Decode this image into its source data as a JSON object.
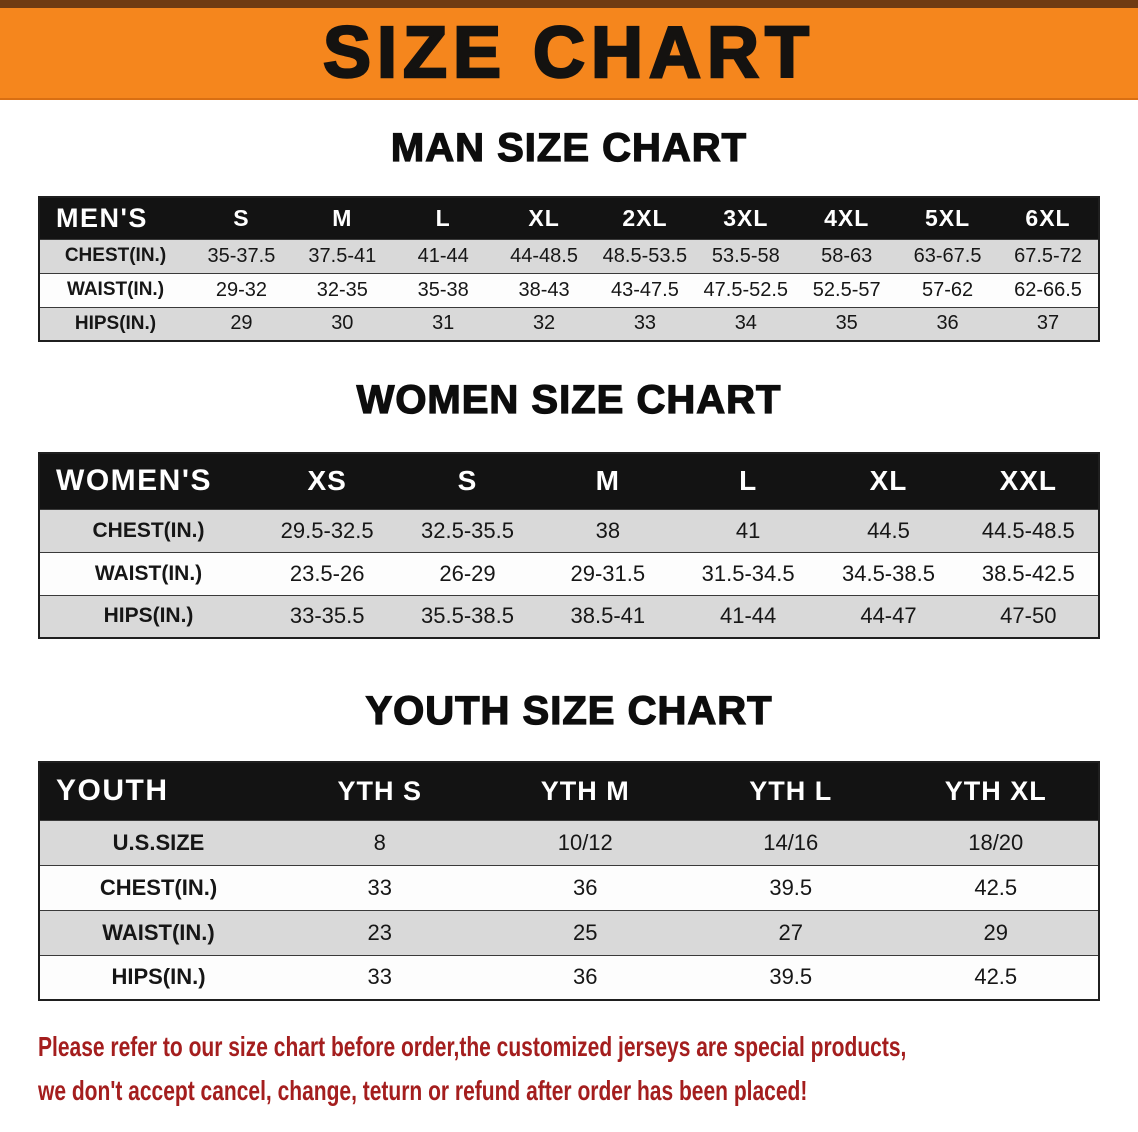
{
  "banner": {
    "title": "SIZE CHART"
  },
  "colors": {
    "banner_orange": "#f5861d",
    "top_strip_brown": "#6f3b12",
    "table_header_black": "#131313",
    "stripe_gray": "#d9d9d9",
    "footer_red": "#a41e1e"
  },
  "chart_data": [
    {
      "type": "table",
      "title": "MAN SIZE CHART",
      "columns": [
        "MEN'S",
        "S",
        "M",
        "L",
        "XL",
        "2XL",
        "3XL",
        "4XL",
        "5XL",
        "6XL"
      ],
      "rows": [
        {
          "label": "CHEST(IN.)",
          "values": [
            "35-37.5",
            "37.5-41",
            "41-44",
            "44-48.5",
            "48.5-53.5",
            "53.5-58",
            "58-63",
            "63-67.5",
            "67.5-72"
          ]
        },
        {
          "label": "WAIST(IN.)",
          "values": [
            "29-32",
            "32-35",
            "35-38",
            "38-43",
            "43-47.5",
            "47.5-52.5",
            "52.5-57",
            "57-62",
            "62-66.5"
          ]
        },
        {
          "label": "HIPS(IN.)",
          "values": [
            "29",
            "30",
            "31",
            "32",
            "33",
            "34",
            "35",
            "36",
            "37"
          ]
        }
      ]
    },
    {
      "type": "table",
      "title": "WOMEN SIZE CHART",
      "columns": [
        "WOMEN'S",
        "XS",
        "S",
        "M",
        "L",
        "XL",
        "XXL"
      ],
      "rows": [
        {
          "label": "CHEST(IN.)",
          "values": [
            "29.5-32.5",
            "32.5-35.5",
            "38",
            "41",
            "44.5",
            "44.5-48.5"
          ]
        },
        {
          "label": "WAIST(IN.)",
          "values": [
            "23.5-26",
            "26-29",
            "29-31.5",
            "31.5-34.5",
            "34.5-38.5",
            "38.5-42.5"
          ]
        },
        {
          "label": "HIPS(IN.)",
          "values": [
            "33-35.5",
            "35.5-38.5",
            "38.5-41",
            "41-44",
            "44-47",
            "47-50"
          ]
        }
      ]
    },
    {
      "type": "table",
      "title": "YOUTH SIZE CHART",
      "columns": [
        "YOUTH",
        "YTH S",
        "YTH M",
        "YTH L",
        "YTH XL"
      ],
      "rows": [
        {
          "label": "U.S.SIZE",
          "values": [
            "8",
            "10/12",
            "14/16",
            "18/20"
          ]
        },
        {
          "label": "CHEST(IN.)",
          "values": [
            "33",
            "36",
            "39.5",
            "42.5"
          ]
        },
        {
          "label": "WAIST(IN.)",
          "values": [
            "23",
            "25",
            "27",
            "29"
          ]
        },
        {
          "label": "HIPS(IN.)",
          "values": [
            "33",
            "36",
            "39.5",
            "42.5"
          ]
        }
      ]
    }
  ],
  "footer": {
    "line1": "Please refer to our size chart before order,the customized jerseys are special products,",
    "line2": "we don't accept cancel, change, teturn or refund after order has been placed!"
  }
}
